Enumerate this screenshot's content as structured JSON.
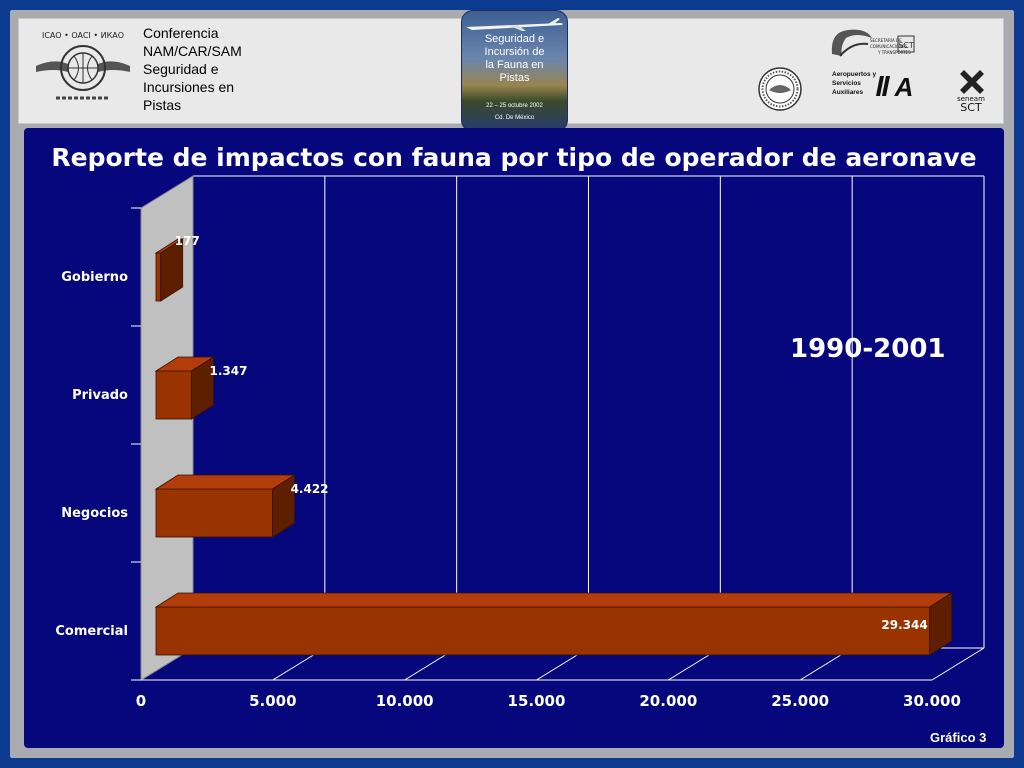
{
  "header": {
    "conference_lines": [
      "Conferencia",
      "NAM/CAR/SAM",
      "Seguridad e",
      "Incursiones en",
      "Pistas"
    ],
    "icao_text": "ICAO • OACI • ИКАО",
    "event": {
      "title_lines": [
        "Seguridad e",
        "Incursión de",
        "la Fauna en",
        "Pistas"
      ],
      "dates": "22 – 25 octubre 2002",
      "place": "Cd. De México"
    },
    "sct_lines": [
      "SECRETARÍA DE",
      "COMUNICACIONES",
      "Y TRANSPORTES"
    ],
    "sct_abbr": "SCT",
    "asa_lines": [
      "Aeropuertos y",
      "Servicios",
      "Auxiliares"
    ],
    "asa_abbr": "A",
    "seneam": "seneam",
    "seneam_sct": "SCT"
  },
  "chart_data": {
    "type": "bar",
    "orientation": "horizontal",
    "title": "Reporte de impactos con fauna por tipo de operador de aeronave",
    "annotation": "1990-2001",
    "categories": [
      "Gobierno",
      "Privado",
      "Negocios",
      "Comercial"
    ],
    "values": [
      177,
      1347,
      4422,
      29344
    ],
    "value_labels": [
      "177",
      "1.347",
      "4.422",
      "29.344"
    ],
    "xlim": [
      0,
      30000
    ],
    "x_ticks": [
      0,
      5000,
      10000,
      15000,
      20000,
      25000,
      30000
    ],
    "x_tick_labels": [
      "0",
      "5.000",
      "10.000",
      "15.000",
      "20.000",
      "25.000",
      "30.000"
    ],
    "grid": true,
    "colors": {
      "bar_front": "#993300",
      "bar_top": "#b33d0a",
      "bar_side": "#5e1e00",
      "background": "#06067d",
      "wall": "#c0c0c0"
    }
  },
  "footer": {
    "figure_label": "Gráfico 3"
  }
}
